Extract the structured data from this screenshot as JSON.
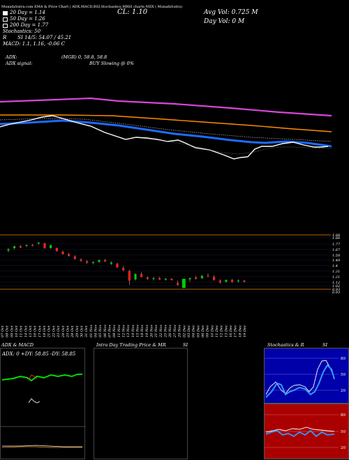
{
  "header": {
    "line": "MunafaSutra.com EMA & Price Chart  |  ADX,MACD,RSI,Stochastics,MRSI charts  NIIX  ( MunafaSutra)",
    "cl_label": "CL: 1.10",
    "avg_vol": "Avg Vol: 0.725 M",
    "day_vol": "Day Vol: 0  M"
  },
  "legend": {
    "day20": "20 Day = 1.14",
    "day50": "50 Day = 1.26",
    "day200": "200 Day = 1.77",
    "stoch": "Stochastics: 50",
    "r": "R",
    "si": "SI 14/5: 54.07 / 45.21",
    "macd": "MACD: 1.1, 1.16, -0.06  C"
  },
  "adx": {
    "line1_left": "ADX:",
    "line1_mid": "(MGR) 0, 58.8, 58.8",
    "line2_left": "ADX  signal:",
    "line2_mid": "BUY Slowing @ 0%"
  },
  "price_axis": {
    "labels": [
      "1.88",
      "1.86",
      "1.77",
      "1.67",
      "1.58",
      "1.49",
      "1.4",
      "1.31",
      "1.21",
      "1.12",
      "1.02",
      "0.93",
      "0.93"
    ]
  },
  "date_axis": {
    "labels": [
      "07 Oct",
      "08 Oct",
      "09 Oct",
      "10 Oct",
      "11 Oct",
      "14 Oct",
      "15 Oct",
      "16 Oct",
      "17 Oct",
      "18 Oct",
      "21 Oct",
      "22 Oct",
      "23 Oct",
      "24 Oct",
      "25 Oct",
      "28 Oct",
      "29 Oct",
      "30 Oct",
      "31 Oct",
      "01 Nov",
      "04 Nov",
      "05 Nov",
      "06 Nov",
      "07 Nov",
      "08 Nov",
      "11 Nov",
      "12 Nov",
      "13 Nov",
      "14 Nov",
      "15 Nov",
      "18 Nov",
      "19 Nov",
      "20 Nov",
      "21 Nov",
      "22 Nov",
      "25 Nov",
      "26 Nov",
      "27 Nov",
      "29 Nov",
      "02 Dec",
      "03 Dec",
      "04 Dec",
      "05 Dec",
      "06 Dec",
      "09 Dec",
      "10 Dec",
      "11 Dec",
      "12 Dec",
      "13 Dec",
      "16 Dec",
      "17 Dec",
      "18 Dec",
      "19 Dec"
    ]
  },
  "panels": {
    "adx_title": "ADX  & MACD",
    "adx_readout": "ADX: 0   +DY: 58.85   -DY: 58.85",
    "intraday_title": "Intra  Day Trading Price  & MR",
    "intraday_si": "SI",
    "stoch_title": "Stochastics & R",
    "stoch_si": "SI",
    "stoch_ticks": [
      "80",
      "50",
      "20"
    ],
    "mrsi_ticks": [
      "80",
      "50",
      "20"
    ]
  },
  "colors": {
    "ema20": "#ffffff",
    "ema50": "#1e6bff",
    "ema100": "#ff8c00",
    "ema200": "#d946d9",
    "up": "#00cc00",
    "down": "#ff2020",
    "stoch_bg": "#0000aa",
    "mrsi_bg": "#aa0000",
    "axis_line": "#c06000"
  },
  "candles": [
    {
      "o": 1.62,
      "h": 1.66,
      "l": 1.59,
      "c": 1.64,
      "up": true
    },
    {
      "o": 1.66,
      "h": 1.7,
      "l": 1.64,
      "c": 1.69,
      "up": true
    },
    {
      "o": 1.69,
      "h": 1.71,
      "l": 1.66,
      "c": 1.67,
      "up": false
    },
    {
      "o": 1.7,
      "h": 1.72,
      "l": 1.68,
      "c": 1.71,
      "up": true
    },
    {
      "o": 1.71,
      "h": 1.73,
      "l": 1.69,
      "c": 1.7,
      "up": false
    },
    {
      "o": 1.74,
      "h": 1.76,
      "l": 1.72,
      "c": 1.75,
      "up": true
    },
    {
      "o": 1.74,
      "h": 1.75,
      "l": 1.65,
      "c": 1.66,
      "up": false
    },
    {
      "o": 1.66,
      "h": 1.72,
      "l": 1.65,
      "c": 1.71,
      "up": true
    },
    {
      "o": 1.66,
      "h": 1.67,
      "l": 1.6,
      "c": 1.61,
      "up": false
    },
    {
      "o": 1.6,
      "h": 1.62,
      "l": 1.55,
      "c": 1.56,
      "up": false
    },
    {
      "o": 1.56,
      "h": 1.58,
      "l": 1.52,
      "c": 1.53,
      "up": false
    },
    {
      "o": 1.52,
      "h": 1.54,
      "l": 1.47,
      "c": 1.48,
      "up": false
    },
    {
      "o": 1.47,
      "h": 1.49,
      "l": 1.43,
      "c": 1.45,
      "up": false
    },
    {
      "o": 1.44,
      "h": 1.46,
      "l": 1.4,
      "c": 1.42,
      "up": false
    },
    {
      "o": 1.42,
      "h": 1.44,
      "l": 1.39,
      "c": 1.43,
      "up": true
    },
    {
      "o": 1.43,
      "h": 1.47,
      "l": 1.42,
      "c": 1.46,
      "up": true
    },
    {
      "o": 1.46,
      "h": 1.48,
      "l": 1.43,
      "c": 1.44,
      "up": false
    },
    {
      "o": 1.4,
      "h": 1.44,
      "l": 1.38,
      "c": 1.42,
      "up": true
    },
    {
      "o": 1.4,
      "h": 1.42,
      "l": 1.33,
      "c": 1.34,
      "up": false
    },
    {
      "o": 1.33,
      "h": 1.36,
      "l": 1.28,
      "c": 1.29,
      "up": false
    },
    {
      "o": 1.28,
      "h": 1.3,
      "l": 1.05,
      "c": 1.12,
      "up": false
    },
    {
      "o": 1.14,
      "h": 1.24,
      "l": 1.12,
      "c": 1.23,
      "up": true
    },
    {
      "o": 1.23,
      "h": 1.26,
      "l": 1.17,
      "c": 1.18,
      "up": false
    },
    {
      "o": 1.17,
      "h": 1.19,
      "l": 1.13,
      "c": 1.15,
      "up": false
    },
    {
      "o": 1.15,
      "h": 1.18,
      "l": 1.12,
      "c": 1.16,
      "up": true
    },
    {
      "o": 1.16,
      "h": 1.18,
      "l": 1.13,
      "c": 1.14,
      "up": false
    },
    {
      "o": 1.14,
      "h": 1.16,
      "l": 1.12,
      "c": 1.15,
      "up": true
    },
    {
      "o": 1.15,
      "h": 1.16,
      "l": 1.12,
      "c": 1.13,
      "up": false
    },
    {
      "o": 1.08,
      "h": 1.12,
      "l": 1.03,
      "c": 1.05,
      "up": false
    },
    {
      "o": 1.0,
      "h": 1.15,
      "l": 0.99,
      "c": 1.15,
      "up": true
    },
    {
      "o": 1.14,
      "h": 1.17,
      "l": 1.1,
      "c": 1.16,
      "up": true
    },
    {
      "o": 1.17,
      "h": 1.2,
      "l": 1.14,
      "c": 1.15,
      "up": false
    },
    {
      "o": 1.16,
      "h": 1.21,
      "l": 1.15,
      "c": 1.2,
      "up": true
    },
    {
      "o": 1.2,
      "h": 1.24,
      "l": 1.18,
      "c": 1.19,
      "up": false
    },
    {
      "o": 1.18,
      "h": 1.21,
      "l": 1.12,
      "c": 1.13,
      "up": false
    },
    {
      "o": 1.12,
      "h": 1.14,
      "l": 1.07,
      "c": 1.09,
      "up": false
    },
    {
      "o": 1.1,
      "h": 1.14,
      "l": 1.09,
      "c": 1.13,
      "up": true
    },
    {
      "o": 1.13,
      "h": 1.15,
      "l": 1.08,
      "c": 1.1,
      "up": false
    },
    {
      "o": 1.11,
      "h": 1.14,
      "l": 1.09,
      "c": 1.12,
      "up": true
    },
    {
      "o": 1.12,
      "h": 1.13,
      "l": 1.09,
      "c": 1.1,
      "up": false
    }
  ]
}
